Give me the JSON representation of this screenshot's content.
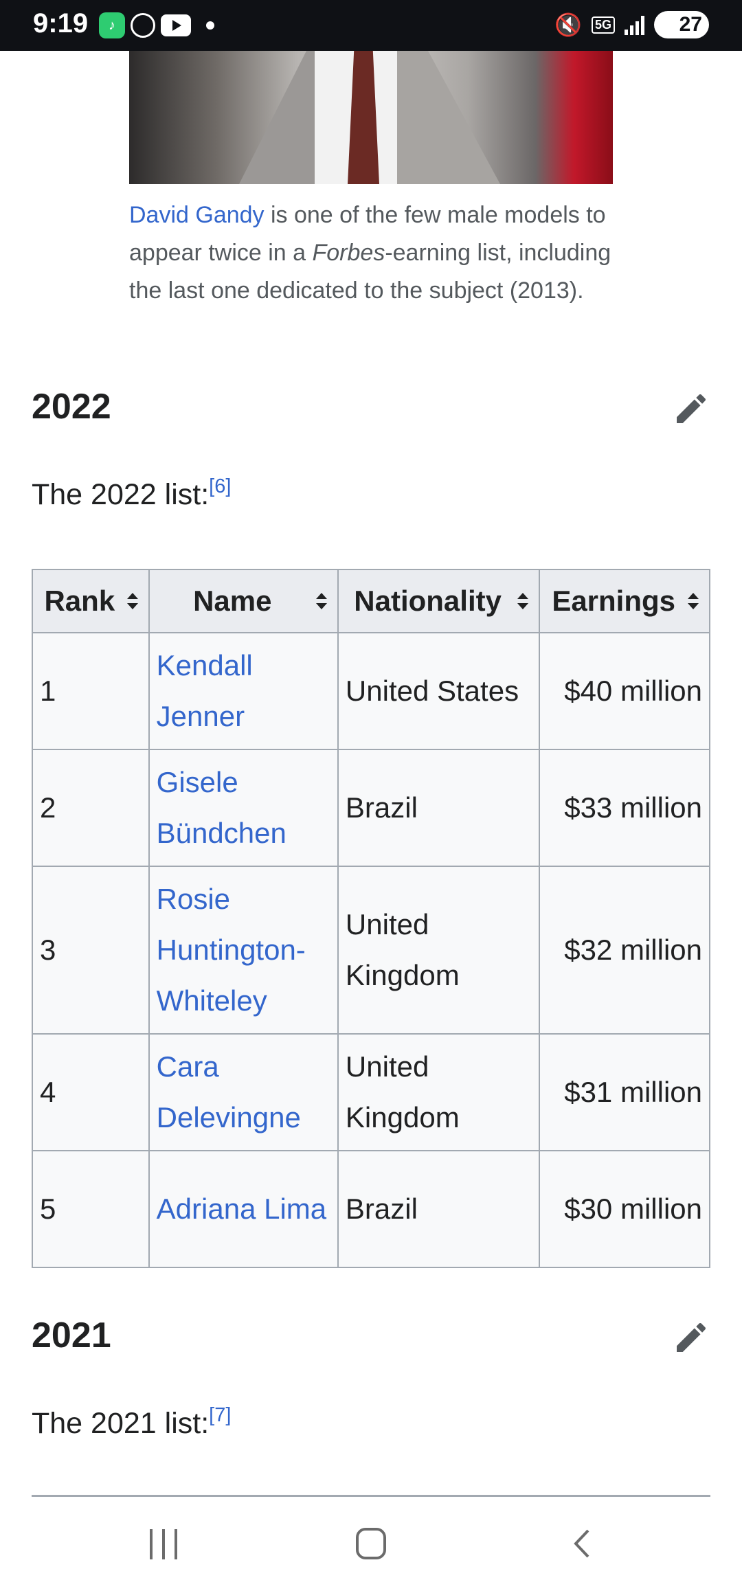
{
  "status_bar": {
    "time": "9:19",
    "network": "5G",
    "battery": "27",
    "icons": [
      "app-icon",
      "whatsapp-icon",
      "youtube-icon",
      "notification-dot",
      "mute-icon",
      "5g-icon",
      "signal-icon",
      "battery-icon"
    ]
  },
  "caption": {
    "link": "David Gandy",
    "text_1": " is one of the few male models to appear twice in a ",
    "italic": "Forbes",
    "text_2": "-earning list, including the last one dedicated to the subject (2013)."
  },
  "section_2022": {
    "heading": "2022",
    "intro": "The 2022 list:",
    "ref": "[6]",
    "edit_icon": "pencil-icon"
  },
  "table_2022": {
    "headers": [
      "Rank",
      "Name",
      "Nationality",
      "Earnings"
    ],
    "rows": [
      {
        "rank": "1",
        "name": "Kendall Jenner",
        "nationality": "United States",
        "earnings": "$40 million"
      },
      {
        "rank": "2",
        "name": "Gisele Bündchen",
        "nationality": "Brazil",
        "earnings": "$33 million"
      },
      {
        "rank": "3",
        "name": "Rosie Huntington-Whiteley",
        "nationality": "United Kingdom",
        "earnings": "$32 million"
      },
      {
        "rank": "4",
        "name": "Cara Delevingne",
        "nationality": "United Kingdom",
        "earnings": "$31 million"
      },
      {
        "rank": "5",
        "name": "Adriana Lima",
        "nationality": "Brazil",
        "earnings": "$30 million"
      }
    ]
  },
  "section_2021": {
    "heading": "2021",
    "intro": "The 2021 list:",
    "ref": "[7]",
    "edit_icon": "pencil-icon"
  },
  "nav_bar": {
    "icons": [
      "recent-apps-icon",
      "home-icon",
      "back-icon"
    ]
  },
  "colors": {
    "link": "#3366cc",
    "header_bg": "#eaecf0",
    "cell_bg": "#f8f9fa",
    "border": "#a2a9b1",
    "status_bar_bg": "#0f1115"
  }
}
